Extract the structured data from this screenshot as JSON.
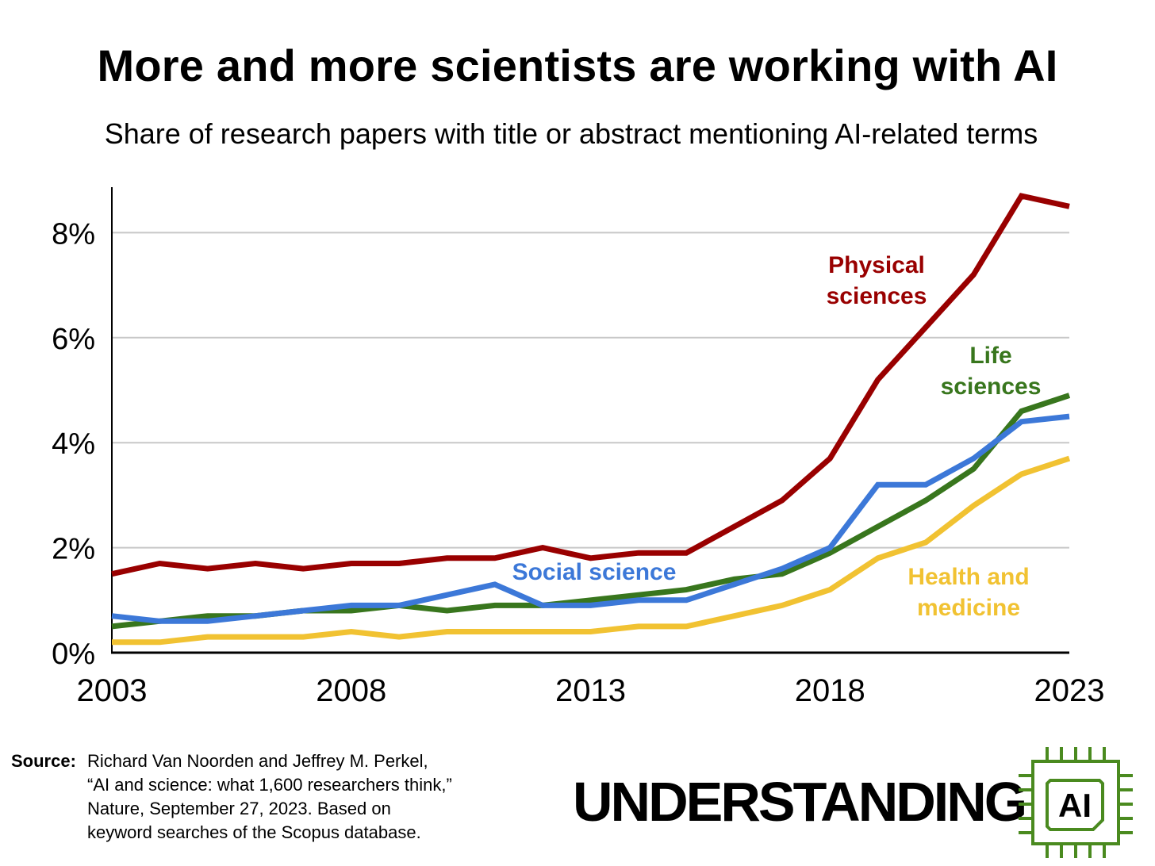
{
  "chart_data": {
    "type": "line",
    "title": "More and more scientists are working with AI",
    "subtitle": "Share of research papers with title or abstract mentioning AI-related terms",
    "xlabel": "",
    "ylabel": "",
    "x": [
      2003,
      2004,
      2005,
      2006,
      2007,
      2008,
      2009,
      2010,
      2011,
      2012,
      2013,
      2014,
      2015,
      2016,
      2017,
      2018,
      2019,
      2020,
      2021,
      2022,
      2023
    ],
    "x_ticks": [
      "2003",
      "2008",
      "2013",
      "2018",
      "2023"
    ],
    "y_ticks": [
      "0%",
      "2%",
      "4%",
      "6%",
      "8%"
    ],
    "y_tick_values": [
      0,
      2,
      4,
      6,
      8
    ],
    "xlim": [
      2003,
      2023
    ],
    "ylim": [
      0,
      8.9
    ],
    "grid": true,
    "legend": "inline labels",
    "series": [
      {
        "name": "Physical sciences",
        "label_lines": [
          "Physical",
          "sciences"
        ],
        "color": "#990000",
        "values": [
          1.5,
          1.7,
          1.6,
          1.7,
          1.6,
          1.7,
          1.7,
          1.8,
          1.8,
          2.0,
          1.8,
          1.9,
          1.9,
          2.4,
          2.9,
          3.7,
          5.2,
          6.2,
          7.2,
          8.7,
          8.5
        ]
      },
      {
        "name": "Life sciences",
        "label_lines": [
          "Life",
          "sciences"
        ],
        "color": "#38761d",
        "values": [
          0.5,
          0.6,
          0.7,
          0.7,
          0.8,
          0.8,
          0.9,
          0.8,
          0.9,
          0.9,
          1.0,
          1.1,
          1.2,
          1.4,
          1.5,
          1.9,
          2.4,
          2.9,
          3.5,
          4.6,
          4.9
        ]
      },
      {
        "name": "Social science",
        "label_lines": [
          "Social science"
        ],
        "color": "#3c78d8",
        "values": [
          0.7,
          0.6,
          0.6,
          0.7,
          0.8,
          0.9,
          0.9,
          1.1,
          1.3,
          0.9,
          0.9,
          1.0,
          1.0,
          1.3,
          1.6,
          2.0,
          3.2,
          3.2,
          3.7,
          4.4,
          4.5
        ]
      },
      {
        "name": "Health and medicine",
        "label_lines": [
          "Health and",
          "medicine"
        ],
        "color": "#f1c232",
        "values": [
          0.2,
          0.2,
          0.3,
          0.3,
          0.3,
          0.4,
          0.3,
          0.4,
          0.4,
          0.4,
          0.4,
          0.5,
          0.5,
          0.7,
          0.9,
          1.2,
          1.8,
          2.1,
          2.8,
          3.4,
          3.7
        ]
      }
    ]
  },
  "source": {
    "label": "Source:",
    "lines": [
      "Richard Van Noorden and Jeffrey M. Perkel,",
      "“AI and science: what 1,600 researchers think,”",
      "Nature, September 27, 2023. Based on",
      "keyword searches of the Scopus database."
    ]
  },
  "brand": {
    "name": "UNDERSTANDING",
    "logo_text": "AI",
    "logo_color": "#4a8a1f"
  }
}
